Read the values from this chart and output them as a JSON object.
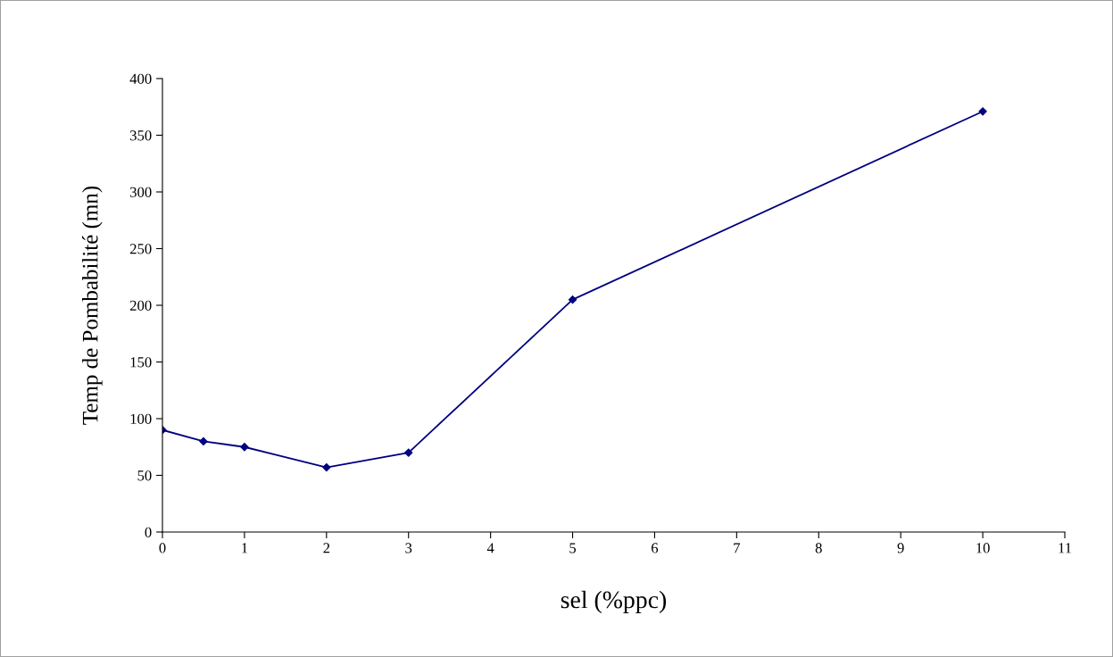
{
  "chart_data": {
    "type": "line",
    "xlabel": "sel (%ppc)",
    "ylabel": "Temp de Pombabilité (mn)",
    "x": [
      0,
      0.5,
      1,
      2,
      3,
      5,
      10
    ],
    "series": [
      {
        "color": "#000080",
        "values": [
          90,
          80,
          75,
          57,
          70,
          205,
          371
        ]
      }
    ],
    "xlim": [
      0,
      11
    ],
    "xticks": [
      0,
      1,
      2,
      3,
      4,
      5,
      6,
      7,
      8,
      9,
      10,
      11
    ],
    "ylim": [
      0,
      400
    ],
    "yticks": [
      0,
      50,
      100,
      150,
      200,
      250,
      300,
      350,
      400
    ],
    "marker": "diamond",
    "line_style": "solid",
    "grid": false,
    "legend": false
  }
}
